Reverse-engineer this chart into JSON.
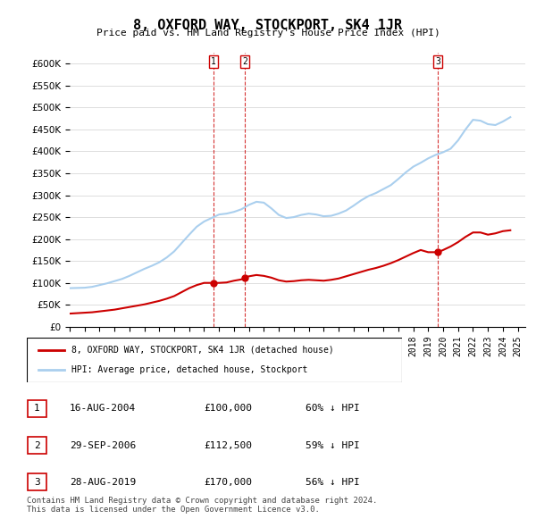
{
  "title": "8, OXFORD WAY, STOCKPORT, SK4 1JR",
  "subtitle": "Price paid vs. HM Land Registry's House Price Index (HPI)",
  "ylabel_ticks": [
    "£0",
    "£50K",
    "£100K",
    "£150K",
    "£200K",
    "£250K",
    "£300K",
    "£350K",
    "£400K",
    "£450K",
    "£500K",
    "£550K",
    "£600K"
  ],
  "ylim": [
    0,
    620000
  ],
  "yticks": [
    0,
    50000,
    100000,
    150000,
    200000,
    250000,
    300000,
    350000,
    400000,
    450000,
    500000,
    550000,
    600000
  ],
  "xmin": 1995,
  "xmax": 2025.5,
  "hpi_color": "#aacfee",
  "price_color": "#cc0000",
  "marker_color": "#cc0000",
  "vline_color": "#cc0000",
  "legend_line1": "8, OXFORD WAY, STOCKPORT, SK4 1JR (detached house)",
  "legend_line2": "HPI: Average price, detached house, Stockport",
  "sales": [
    {
      "num": 1,
      "date": "16-AUG-2004",
      "price": "£100,000",
      "pct": "60% ↓ HPI",
      "year": 2004.62
    },
    {
      "num": 2,
      "date": "29-SEP-2006",
      "price": "£112,500",
      "pct": "59% ↓ HPI",
      "year": 2006.74
    },
    {
      "num": 3,
      "date": "28-AUG-2019",
      "price": "£170,000",
      "pct": "56% ↓ HPI",
      "year": 2019.65
    }
  ],
  "sale_prices": [
    100000,
    112500,
    170000
  ],
  "sale_years": [
    2004.62,
    2006.74,
    2019.65
  ],
  "footer": "Contains HM Land Registry data © Crown copyright and database right 2024.\nThis data is licensed under the Open Government Licence v3.0.",
  "hpi_x": [
    1995,
    1995.5,
    1996,
    1996.5,
    1997,
    1997.5,
    1998,
    1998.5,
    1999,
    1999.5,
    2000,
    2000.5,
    2001,
    2001.5,
    2002,
    2002.5,
    2003,
    2003.5,
    2004,
    2004.5,
    2005,
    2005.5,
    2006,
    2006.5,
    2007,
    2007.5,
    2008,
    2008.5,
    2009,
    2009.5,
    2010,
    2010.5,
    2011,
    2011.5,
    2012,
    2012.5,
    2013,
    2013.5,
    2014,
    2014.5,
    2015,
    2015.5,
    2016,
    2016.5,
    2017,
    2017.5,
    2018,
    2018.5,
    2019,
    2019.5,
    2020,
    2020.5,
    2021,
    2021.5,
    2022,
    2022.5,
    2023,
    2023.5,
    2024,
    2024.5
  ],
  "hpi_y": [
    88000,
    88500,
    89000,
    91000,
    95000,
    99000,
    104000,
    109000,
    116000,
    124000,
    132000,
    139000,
    147000,
    158000,
    172000,
    191000,
    210000,
    228000,
    240000,
    248000,
    256000,
    258000,
    262000,
    268000,
    278000,
    285000,
    283000,
    270000,
    255000,
    248000,
    250000,
    255000,
    258000,
    256000,
    252000,
    253000,
    258000,
    265000,
    276000,
    288000,
    298000,
    305000,
    314000,
    323000,
    337000,
    352000,
    365000,
    374000,
    384000,
    392000,
    398000,
    406000,
    425000,
    450000,
    472000,
    470000,
    462000,
    460000,
    468000,
    478000
  ],
  "price_x": [
    1995,
    1995.5,
    1996,
    1996.5,
    1997,
    1997.5,
    1998,
    1998.5,
    1999,
    1999.5,
    2000,
    2000.5,
    2001,
    2001.5,
    2002,
    2002.5,
    2003,
    2003.5,
    2004,
    2004.5,
    2004.62,
    2005,
    2005.5,
    2006,
    2006.5,
    2006.74,
    2007,
    2007.5,
    2008,
    2008.5,
    2009,
    2009.5,
    2010,
    2010.5,
    2011,
    2011.5,
    2012,
    2012.5,
    2013,
    2013.5,
    2014,
    2014.5,
    2015,
    2015.5,
    2016,
    2016.5,
    2017,
    2017.5,
    2018,
    2018.5,
    2019,
    2019.5,
    2019.65,
    2020,
    2020.5,
    2021,
    2021.5,
    2022,
    2022.5,
    2023,
    2023.5,
    2024,
    2024.5
  ],
  "price_y": [
    30000,
    31000,
    32000,
    33000,
    35000,
    37000,
    39000,
    42000,
    45000,
    48000,
    51000,
    55000,
    59000,
    64000,
    70000,
    79000,
    88000,
    95000,
    100000,
    100000,
    100000,
    100000,
    101000,
    105000,
    108000,
    112500,
    115000,
    118000,
    116000,
    112000,
    106000,
    103000,
    104000,
    106000,
    107000,
    106000,
    105000,
    107000,
    110000,
    115000,
    120000,
    125000,
    130000,
    134000,
    139000,
    145000,
    152000,
    160000,
    168000,
    175000,
    170000,
    170000,
    170000,
    175000,
    183000,
    193000,
    205000,
    215000,
    215000,
    210000,
    213000,
    218000,
    220000
  ]
}
